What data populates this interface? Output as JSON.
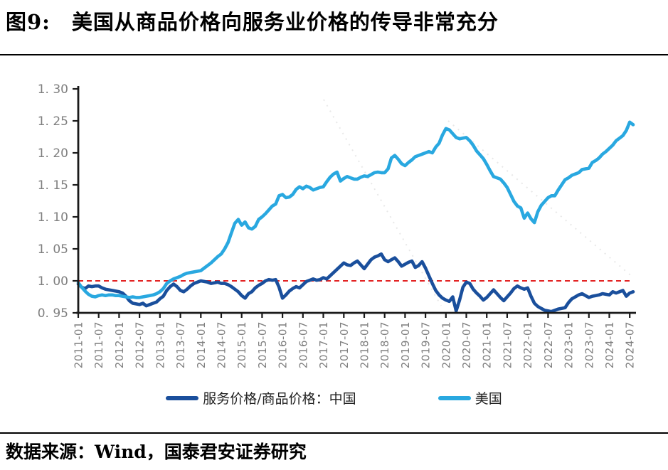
{
  "header": {
    "figure_label": "图9:",
    "title": "美国从商品价格向服务业价格的传导非常充分"
  },
  "footer": {
    "source": "数据来源：Wind，国泰君安证券研究"
  },
  "chart_data": {
    "type": "line",
    "x_start": "2011-01",
    "x_frequency": "monthly",
    "x_tick_labels": [
      "2011-01",
      "2011-07",
      "2012-01",
      "2012-07",
      "2013-01",
      "2013-07",
      "2014-01",
      "2014-07",
      "2015-01",
      "2015-07",
      "2016-01",
      "2016-07",
      "2017-01",
      "2017-07",
      "2018-01",
      "2018-07",
      "2019-01",
      "2019-07",
      "2020-01",
      "2020-07",
      "2021-01",
      "2021-07",
      "2022-01",
      "2022-07",
      "2023-01",
      "2023-07",
      "2024-01",
      "2024-07"
    ],
    "ytick_labels": [
      "1. 30",
      "1. 25",
      "1. 20",
      "1. 15",
      "1. 10",
      "1. 05",
      "1. 00",
      "0. 95"
    ],
    "ytick_values": [
      1.3,
      1.25,
      1.2,
      1.15,
      1.1,
      1.05,
      1.0,
      0.95
    ],
    "ylim": [
      0.95,
      1.3
    ],
    "grid": false,
    "legend_position": "bottom",
    "reference_line": {
      "value": 1.0,
      "style": "dashed",
      "color": "#e32222"
    },
    "colors": {
      "axis": "#1a1a1a",
      "tick_label": "#7f7f7f"
    },
    "series": [
      {
        "name": "服务价格/商品价格：中国",
        "color": "#1a4f9c",
        "values": [
          0.995,
          0.99,
          0.988,
          0.992,
          0.991,
          0.992,
          0.992,
          0.989,
          0.987,
          0.986,
          0.985,
          0.984,
          0.983,
          0.981,
          0.976,
          0.969,
          0.965,
          0.964,
          0.963,
          0.965,
          0.961,
          0.963,
          0.965,
          0.967,
          0.972,
          0.976,
          0.985,
          0.991,
          0.995,
          0.991,
          0.985,
          0.983,
          0.987,
          0.992,
          0.996,
          0.998,
          1.0,
          0.999,
          0.998,
          0.996,
          0.997,
          0.998,
          0.996,
          0.996,
          0.994,
          0.991,
          0.987,
          0.983,
          0.977,
          0.973,
          0.98,
          0.983,
          0.989,
          0.993,
          0.996,
          1.0,
          1.002,
          1.001,
          1.002,
          0.99,
          0.973,
          0.978,
          0.984,
          0.988,
          0.991,
          0.989,
          0.994,
          0.999,
          1.001,
          1.003,
          1.001,
          1.002,
          1.005,
          1.003,
          1.008,
          1.013,
          1.018,
          1.023,
          1.028,
          1.025,
          1.024,
          1.028,
          1.031,
          1.025,
          1.019,
          1.026,
          1.033,
          1.037,
          1.039,
          1.042,
          1.033,
          1.03,
          1.033,
          1.036,
          1.03,
          1.023,
          1.026,
          1.029,
          1.031,
          1.021,
          1.024,
          1.03,
          1.02,
          1.008,
          0.996,
          0.985,
          0.978,
          0.973,
          0.97,
          0.968,
          0.975,
          0.953,
          0.97,
          0.99,
          0.998,
          0.996,
          0.987,
          0.981,
          0.976,
          0.97,
          0.974,
          0.98,
          0.986,
          0.98,
          0.974,
          0.969,
          0.975,
          0.981,
          0.988,
          0.992,
          0.989,
          0.987,
          0.989,
          0.976,
          0.965,
          0.96,
          0.957,
          0.954,
          0.953,
          0.952,
          0.954,
          0.956,
          0.957,
          0.958,
          0.966,
          0.972,
          0.975,
          0.978,
          0.98,
          0.977,
          0.974,
          0.976,
          0.977,
          0.978,
          0.98,
          0.979,
          0.978,
          0.983,
          0.981,
          0.983,
          0.985,
          0.976,
          0.981,
          0.983
        ]
      },
      {
        "name": "美国",
        "color": "#29a8e0",
        "values": [
          0.997,
          0.99,
          0.984,
          0.979,
          0.976,
          0.975,
          0.977,
          0.978,
          0.977,
          0.978,
          0.978,
          0.977,
          0.977,
          0.976,
          0.975,
          0.974,
          0.975,
          0.974,
          0.974,
          0.975,
          0.976,
          0.977,
          0.978,
          0.98,
          0.983,
          0.988,
          0.996,
          1.0,
          1.003,
          1.005,
          1.007,
          1.01,
          1.012,
          1.013,
          1.014,
          1.015,
          1.016,
          1.02,
          1.024,
          1.028,
          1.033,
          1.038,
          1.042,
          1.05,
          1.06,
          1.075,
          1.09,
          1.096,
          1.087,
          1.092,
          1.083,
          1.081,
          1.085,
          1.096,
          1.1,
          1.105,
          1.111,
          1.117,
          1.12,
          1.133,
          1.135,
          1.13,
          1.131,
          1.135,
          1.143,
          1.147,
          1.144,
          1.148,
          1.146,
          1.142,
          1.144,
          1.146,
          1.147,
          1.155,
          1.162,
          1.167,
          1.17,
          1.156,
          1.16,
          1.163,
          1.161,
          1.159,
          1.159,
          1.162,
          1.164,
          1.163,
          1.166,
          1.169,
          1.17,
          1.169,
          1.169,
          1.175,
          1.192,
          1.196,
          1.19,
          1.183,
          1.18,
          1.185,
          1.189,
          1.194,
          1.196,
          1.198,
          1.2,
          1.202,
          1.2,
          1.209,
          1.215,
          1.228,
          1.238,
          1.236,
          1.23,
          1.224,
          1.222,
          1.223,
          1.224,
          1.219,
          1.212,
          1.203,
          1.197,
          1.191,
          1.182,
          1.172,
          1.163,
          1.161,
          1.159,
          1.153,
          1.146,
          1.135,
          1.124,
          1.117,
          1.114,
          1.098,
          1.106,
          1.097,
          1.091,
          1.108,
          1.118,
          1.124,
          1.13,
          1.133,
          1.133,
          1.142,
          1.15,
          1.158,
          1.161,
          1.165,
          1.167,
          1.169,
          1.174,
          1.175,
          1.176,
          1.185,
          1.188,
          1.192,
          1.198,
          1.202,
          1.207,
          1.212,
          1.219,
          1.223,
          1.227,
          1.235,
          1.248,
          1.244
        ]
      }
    ]
  }
}
